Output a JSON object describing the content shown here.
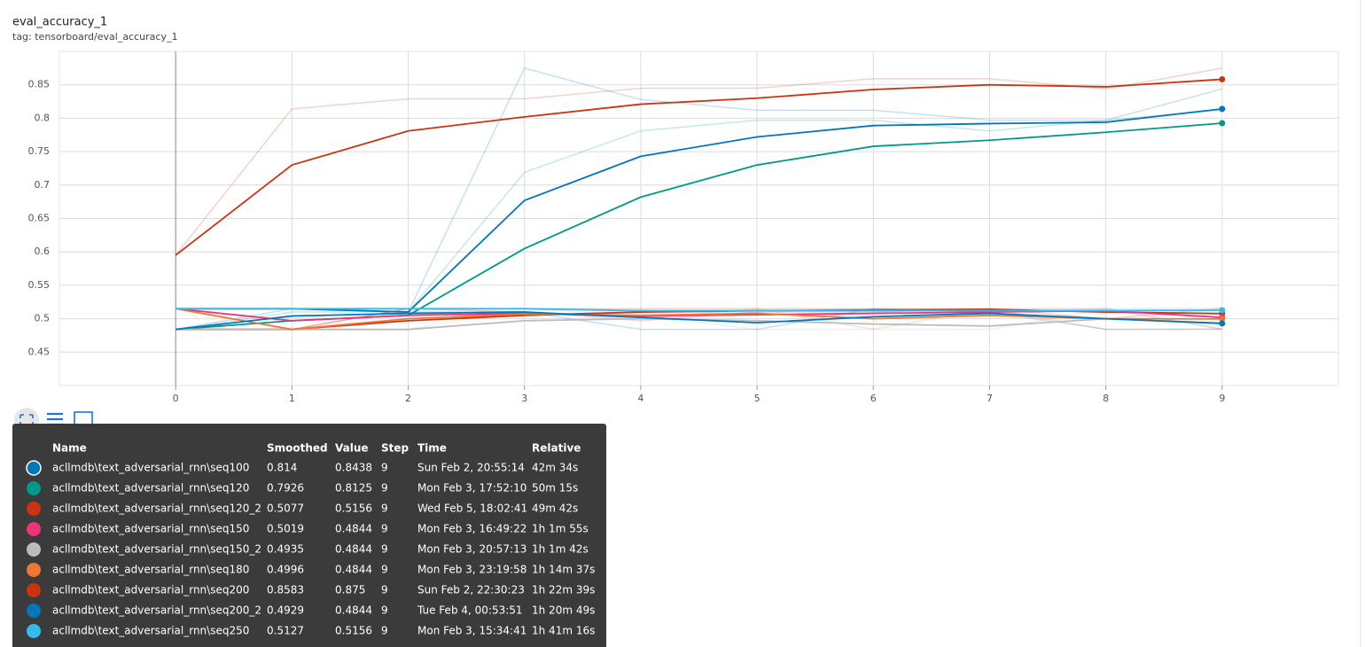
{
  "chart_data": {
    "type": "line",
    "title": "eval_accuracy_1",
    "subtitle": "tag: tensorboard/eval_accuracy_1",
    "x": [
      0,
      1,
      2,
      3,
      4,
      5,
      6,
      7,
      8,
      9
    ],
    "xlim": [
      -1,
      10
    ],
    "xticks": [
      0,
      1,
      2,
      3,
      4,
      5,
      6,
      7,
      8,
      9
    ],
    "ylim": [
      0.4,
      0.9
    ],
    "yticks": [
      0.45,
      0.5,
      0.55,
      0.6,
      0.65,
      0.7,
      0.75,
      0.8,
      0.85
    ],
    "grid": true,
    "series": [
      {
        "name": "acllmdb\\text_adversarial_rnn\\seq100",
        "color": "#0077bb",
        "values": [
          0.515,
          0.515,
          0.51,
          0.677,
          0.743,
          0.772,
          0.789,
          0.792,
          0.794,
          0.814
        ],
        "raw_values": [
          0.515,
          0.515,
          0.51,
          0.875,
          0.828,
          0.812,
          0.812,
          0.797,
          0.797,
          0.8438
        ]
      },
      {
        "name": "acllmdb\\text_adversarial_rnn\\seq120",
        "color": "#009988",
        "values": [
          0.484,
          0.497,
          0.505,
          0.605,
          0.682,
          0.73,
          0.758,
          0.767,
          0.779,
          0.7926
        ],
        "raw_values": [
          0.484,
          0.51,
          0.51,
          0.719,
          0.781,
          0.797,
          0.797,
          0.781,
          0.797,
          0.8125
        ]
      },
      {
        "name": "acllmdb\\text_adversarial_rnn\\seq120_2",
        "color": "#cc3311",
        "values": [
          0.484,
          0.484,
          0.497,
          0.505,
          0.51,
          0.512,
          0.513,
          0.514,
          0.51,
          0.5077
        ],
        "raw_values": [
          0.484,
          0.484,
          0.515,
          0.515,
          0.515,
          0.515,
          0.515,
          0.515,
          0.5,
          0.5156
        ]
      },
      {
        "name": "acllmdb\\text_adversarial_rnn\\seq150",
        "color": "#ee3377",
        "values": [
          0.515,
          0.497,
          0.505,
          0.508,
          0.504,
          0.506,
          0.508,
          0.51,
          0.512,
          0.5019
        ],
        "raw_values": [
          0.515,
          0.484,
          0.515,
          0.51,
          0.497,
          0.51,
          0.51,
          0.515,
          0.515,
          0.4844
        ]
      },
      {
        "name": "acllmdb\\text_adversarial_rnn\\seq150_2",
        "color": "#bbbbbb",
        "values": [
          0.484,
          0.484,
          0.484,
          0.497,
          0.5,
          0.497,
          0.492,
          0.489,
          0.5,
          0.4935
        ],
        "raw_values": [
          0.484,
          0.484,
          0.484,
          0.515,
          0.505,
          0.484,
          0.484,
          0.484,
          0.515,
          0.4844
        ]
      },
      {
        "name": "acllmdb\\text_adversarial_rnn\\seq180",
        "color": "#ee7733",
        "values": [
          0.515,
          0.484,
          0.5,
          0.507,
          0.505,
          0.508,
          0.5,
          0.505,
          0.5,
          0.4996
        ],
        "raw_values": [
          0.515,
          0.484,
          0.515,
          0.51,
          0.5,
          0.515,
          0.484,
          0.515,
          0.484,
          0.4844
        ]
      },
      {
        "name": "acllmdb\\text_adversarial_rnn\\seq200",
        "color": "#cc3311",
        "values": [
          0.595,
          0.73,
          0.781,
          0.802,
          0.821,
          0.83,
          0.843,
          0.85,
          0.847,
          0.8583
        ],
        "raw_values": [
          0.595,
          0.814,
          0.829,
          0.829,
          0.845,
          0.845,
          0.859,
          0.859,
          0.844,
          0.875
        ]
      },
      {
        "name": "acllmdb\\text_adversarial_rnn\\seq200_2",
        "color": "#0077bb",
        "values": [
          0.484,
          0.504,
          0.508,
          0.51,
          0.502,
          0.494,
          0.503,
          0.508,
          0.5,
          0.4929
        ],
        "raw_values": [
          0.484,
          0.515,
          0.51,
          0.51,
          0.484,
          0.484,
          0.515,
          0.51,
          0.484,
          0.4844
        ]
      },
      {
        "name": "acllmdb\\text_adversarial_rnn\\seq250",
        "color": "#33bbee",
        "values": [
          0.515,
          0.515,
          0.515,
          0.515,
          0.512,
          0.512,
          0.512,
          0.512,
          0.512,
          0.5127
        ],
        "raw_values": [
          0.515,
          0.515,
          0.515,
          0.515,
          0.51,
          0.51,
          0.515,
          0.51,
          0.515,
          0.5156
        ]
      }
    ]
  },
  "tooltip": {
    "columns": [
      "Name",
      "Smoothed",
      "Value",
      "Step",
      "Time",
      "Relative"
    ],
    "rows": [
      [
        "acllmdb\\text_adversarial_rnn\\seq100",
        0.814,
        0.8438,
        9,
        "Sun Feb 2, 20:55:14",
        "42m 34s"
      ],
      [
        "acllmdb\\text_adversarial_rnn\\seq120",
        0.7926,
        0.8125,
        9,
        "Mon Feb 3, 17:52:10",
        "50m 15s"
      ],
      [
        "acllmdb\\text_adversarial_rnn\\seq120_2",
        0.5077,
        0.5156,
        9,
        "Wed Feb 5, 18:02:41",
        "49m 42s"
      ],
      [
        "acllmdb\\text_adversarial_rnn\\seq150",
        0.5019,
        0.4844,
        9,
        "Mon Feb 3, 16:49:22",
        "1h 1m 55s"
      ],
      [
        "acllmdb\\text_adversarial_rnn\\seq150_2",
        0.4935,
        0.4844,
        9,
        "Mon Feb 3, 20:57:13",
        "1h 1m 42s"
      ],
      [
        "acllmdb\\text_adversarial_rnn\\seq180",
        0.4996,
        0.4844,
        9,
        "Mon Feb 3, 23:19:58",
        "1h 14m 37s"
      ],
      [
        "acllmdb\\text_adversarial_rnn\\seq200",
        0.8583,
        0.875,
        9,
        "Sun Feb 2, 22:30:23",
        "1h 22m 39s"
      ],
      [
        "acllmdb\\text_adversarial_rnn\\seq200_2",
        0.4929,
        0.4844,
        9,
        "Tue Feb 4, 00:53:51",
        "1h 20m 49s"
      ],
      [
        "acllmdb\\text_adversarial_rnn\\seq250",
        0.5127,
        0.5156,
        9,
        "Mon Feb 3, 15:34:41",
        "1h 41m 16s"
      ]
    ]
  }
}
